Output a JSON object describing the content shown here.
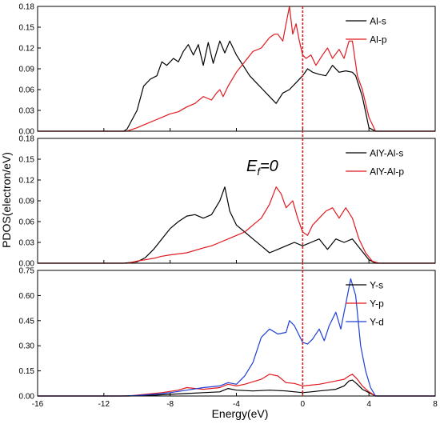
{
  "figure": {
    "ylabel": "PDOS(electron/eV)",
    "xlabel": "Energy(eV)",
    "fermi_label_main": "E",
    "fermi_label_sub": "f",
    "fermi_label_tail": "=0"
  },
  "chart_data": [
    {
      "type": "line",
      "xlim": [
        -16,
        8
      ],
      "ylim": [
        0,
        0.18
      ],
      "yticks": [
        "0.00",
        "0.03",
        "0.06",
        "0.09",
        "0.12",
        "0.15",
        "0.18"
      ],
      "xticks": [],
      "legend_position": "top-right",
      "fermi_x": 0,
      "series": [
        {
          "name": "Al-s",
          "color": "#000000",
          "x": [
            -16,
            -10.8,
            -10.6,
            -10.0,
            -9.6,
            -9.2,
            -8.8,
            -8.5,
            -8.2,
            -7.8,
            -7.5,
            -7.2,
            -6.9,
            -6.6,
            -6.3,
            -6.0,
            -5.7,
            -5.4,
            -5.0,
            -4.7,
            -4.4,
            -4.0,
            -3.6,
            -3.2,
            -2.8,
            -2.4,
            -2.0,
            -1.6,
            -1.2,
            -0.8,
            -0.4,
            0,
            0.3,
            0.6,
            1.0,
            1.4,
            1.8,
            2.2,
            2.6,
            3.0,
            3.2,
            3.6,
            4.0,
            4.4,
            8
          ],
          "y": [
            0,
            0,
            0.003,
            0.03,
            0.065,
            0.075,
            0.08,
            0.1,
            0.095,
            0.105,
            0.1,
            0.115,
            0.125,
            0.11,
            0.125,
            0.095,
            0.128,
            0.098,
            0.13,
            0.113,
            0.13,
            0.11,
            0.095,
            0.08,
            0.07,
            0.06,
            0.05,
            0.04,
            0.055,
            0.06,
            0.07,
            0.08,
            0.09,
            0.085,
            0.082,
            0.08,
            0.095,
            0.085,
            0.087,
            0.085,
            0.08,
            0.05,
            0.005,
            0,
            0
          ]
        },
        {
          "name": "Al-p",
          "color": "#e0191f",
          "x": [
            -16,
            -10.6,
            -10.0,
            -9.5,
            -9.0,
            -8.5,
            -8.0,
            -7.5,
            -7.0,
            -6.5,
            -6.0,
            -5.5,
            -5.2,
            -5.0,
            -4.8,
            -4.5,
            -4.0,
            -3.5,
            -3.0,
            -2.5,
            -2.0,
            -1.7,
            -1.5,
            -1.2,
            -1.0,
            -0.8,
            -0.6,
            -0.4,
            -0.2,
            0,
            0.2,
            0.5,
            0.8,
            1.2,
            1.5,
            1.8,
            2.2,
            2.5,
            2.8,
            3.0,
            3.3,
            3.6,
            4.0,
            4.4,
            8
          ],
          "y": [
            0,
            0,
            0.005,
            0.01,
            0.015,
            0.02,
            0.025,
            0.028,
            0.035,
            0.04,
            0.05,
            0.045,
            0.055,
            0.06,
            0.05,
            0.065,
            0.085,
            0.1,
            0.115,
            0.12,
            0.135,
            0.14,
            0.14,
            0.13,
            0.155,
            0.18,
            0.14,
            0.155,
            0.13,
            0.11,
            0.105,
            0.11,
            0.095,
            0.11,
            0.12,
            0.105,
            0.118,
            0.105,
            0.13,
            0.13,
            0.08,
            0.06,
            0.02,
            0,
            0
          ]
        }
      ]
    },
    {
      "type": "line",
      "xlim": [
        -16,
        8
      ],
      "ylim": [
        0,
        0.18
      ],
      "yticks": [
        "0.00",
        "0.03",
        "0.06",
        "0.09",
        "0.12",
        "0.15",
        "0.18"
      ],
      "xticks": [],
      "legend_position": "top-right",
      "fermi_x": 0,
      "series": [
        {
          "name": "AlY-Al-s",
          "color": "#000000",
          "x": [
            -16,
            -10.8,
            -10.0,
            -9.5,
            -9.0,
            -8.5,
            -8.0,
            -7.5,
            -7.0,
            -6.5,
            -6.0,
            -5.5,
            -5.0,
            -4.7,
            -4.4,
            -4.0,
            -3.5,
            -3.0,
            -2.5,
            -2.0,
            -1.5,
            -1.0,
            -0.5,
            0,
            0.5,
            1.0,
            1.5,
            2.0,
            2.5,
            3.0,
            3.5,
            4.0,
            4.4,
            8
          ],
          "y": [
            0,
            0,
            0.002,
            0.008,
            0.02,
            0.035,
            0.05,
            0.06,
            0.068,
            0.07,
            0.065,
            0.07,
            0.09,
            0.11,
            0.075,
            0.055,
            0.045,
            0.035,
            0.025,
            0.015,
            0.02,
            0.025,
            0.03,
            0.025,
            0.03,
            0.035,
            0.02,
            0.035,
            0.03,
            0.035,
            0.02,
            0.005,
            0,
            0
          ]
        },
        {
          "name": "AlY-Al-p",
          "color": "#e0191f",
          "x": [
            -16,
            -10.6,
            -10.0,
            -9.5,
            -9.0,
            -8.5,
            -8.0,
            -7.0,
            -6.0,
            -5.5,
            -5.0,
            -4.5,
            -4.0,
            -3.5,
            -3.0,
            -2.5,
            -2.0,
            -1.6,
            -1.3,
            -1.0,
            -0.6,
            -0.3,
            0,
            0.3,
            0.6,
            1.0,
            1.4,
            1.8,
            2.2,
            2.6,
            3.0,
            3.4,
            3.8,
            4.2,
            4.6,
            8
          ],
          "y": [
            0,
            0,
            0.003,
            0.005,
            0.007,
            0.01,
            0.012,
            0.015,
            0.022,
            0.025,
            0.03,
            0.035,
            0.04,
            0.045,
            0.055,
            0.065,
            0.085,
            0.11,
            0.1,
            0.08,
            0.09,
            0.065,
            0.045,
            0.04,
            0.055,
            0.065,
            0.075,
            0.08,
            0.065,
            0.08,
            0.065,
            0.035,
            0.015,
            0.003,
            0,
            0
          ]
        }
      ]
    },
    {
      "type": "line",
      "xlim": [
        -16,
        8
      ],
      "ylim": [
        0,
        0.75
      ],
      "yticks": [
        "0.00",
        "0.15",
        "0.30",
        "0.45",
        "0.60",
        "0.75"
      ],
      "xticks": [
        "-16",
        "-12",
        "-8",
        "-4",
        "0",
        "4",
        "8"
      ],
      "legend_position": "top-right",
      "fermi_x": 0,
      "series": [
        {
          "name": "Y-s",
          "color": "#000000",
          "x": [
            -16,
            -10.5,
            -9.0,
            -8.0,
            -7.0,
            -6.0,
            -5.0,
            -4.5,
            -4.0,
            -3.0,
            -2.0,
            -1.0,
            0,
            0.5,
            1.0,
            1.5,
            2.0,
            2.5,
            2.8,
            3.0,
            3.3,
            3.6,
            4.0,
            4.4,
            8
          ],
          "y": [
            0,
            0,
            0.005,
            0.01,
            0.015,
            0.02,
            0.025,
            0.045,
            0.035,
            0.03,
            0.035,
            0.03,
            0.02,
            0.025,
            0.03,
            0.035,
            0.04,
            0.06,
            0.09,
            0.095,
            0.07,
            0.04,
            0.02,
            0,
            0
          ]
        },
        {
          "name": "Y-p",
          "color": "#e0191f",
          "x": [
            -16,
            -10.5,
            -9.5,
            -8.5,
            -7.5,
            -7.0,
            -6.0,
            -5.0,
            -4.5,
            -4.0,
            -3.5,
            -3.0,
            -2.5,
            -2.0,
            -1.5,
            -1.0,
            -0.5,
            0,
            0.5,
            1.0,
            1.5,
            2.0,
            2.5,
            2.8,
            3.0,
            3.3,
            3.6,
            4.0,
            4.4,
            8
          ],
          "y": [
            0,
            0,
            0.01,
            0.02,
            0.035,
            0.05,
            0.04,
            0.05,
            0.07,
            0.06,
            0.07,
            0.085,
            0.1,
            0.13,
            0.12,
            0.08,
            0.075,
            0.06,
            0.065,
            0.07,
            0.08,
            0.09,
            0.1,
            0.12,
            0.13,
            0.1,
            0.06,
            0.025,
            0,
            0
          ]
        },
        {
          "name": "Y-d",
          "color": "#1f3fd6",
          "x": [
            -16,
            -11.0,
            -10.0,
            -9.0,
            -8.0,
            -7.0,
            -6.0,
            -5.0,
            -4.5,
            -4.0,
            -3.5,
            -3.0,
            -2.5,
            -2.0,
            -1.5,
            -1.0,
            -0.8,
            -0.5,
            0,
            0.3,
            0.6,
            1.0,
            1.3,
            1.6,
            2.0,
            2.3,
            2.6,
            2.9,
            3.2,
            3.5,
            3.8,
            4.1,
            4.4,
            8
          ],
          "y": [
            0,
            0,
            0.003,
            0.01,
            0.02,
            0.035,
            0.05,
            0.06,
            0.08,
            0.07,
            0.12,
            0.2,
            0.35,
            0.4,
            0.37,
            0.38,
            0.45,
            0.42,
            0.32,
            0.31,
            0.34,
            0.4,
            0.33,
            0.42,
            0.5,
            0.4,
            0.55,
            0.7,
            0.6,
            0.3,
            0.15,
            0.05,
            0,
            0
          ]
        }
      ]
    }
  ]
}
